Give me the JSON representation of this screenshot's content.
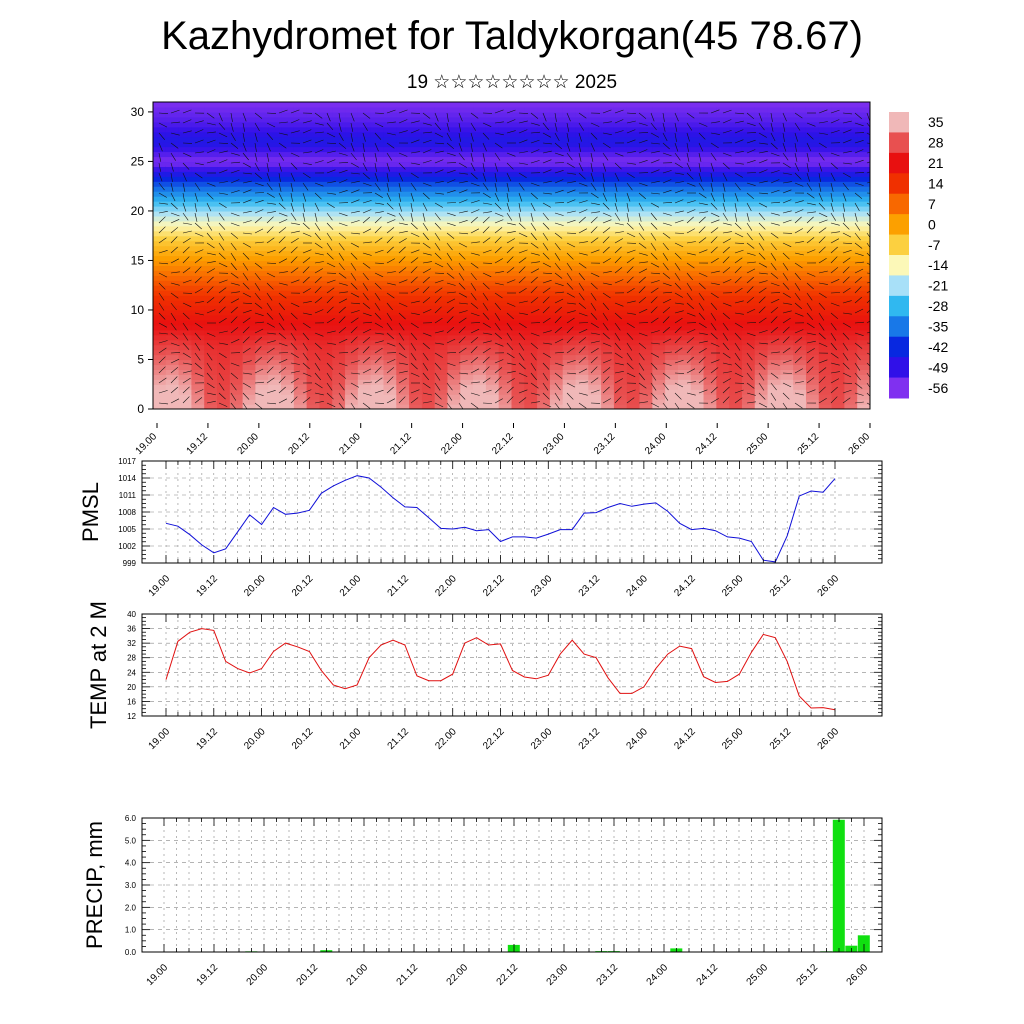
{
  "header": {
    "title": "Kazhydromet for Taldykorgan(45 78.67)",
    "subtitle": "19 ☆☆☆☆☆☆☆☆ 2025"
  },
  "time_ticks": [
    "19.00",
    "19.12",
    "20.00",
    "20.12",
    "21.00",
    "21.12",
    "22.00",
    "22.12",
    "23.00",
    "23.12",
    "24.00",
    "24.12",
    "25.00",
    "25.12",
    "26.00"
  ],
  "chart_data": [
    {
      "type": "heatmap",
      "ylim": [
        0,
        31
      ],
      "y_ticks": [
        0,
        5,
        10,
        15,
        20,
        25,
        30
      ],
      "colorbar": {
        "labels": [
          "35",
          "28",
          "21",
          "14",
          "7",
          "0",
          "-7",
          "-14",
          "-21",
          "-28",
          "-35",
          "-42",
          "-49",
          "-56"
        ],
        "colors": [
          "#f0b8b8",
          "#e85050",
          "#e81010",
          "#f03000",
          "#f86800",
          "#fca000",
          "#fcd040",
          "#fcf8b8",
          "#a8e0f8",
          "#30b8f0",
          "#1878e8",
          "#0828e0",
          "#3010e8",
          "#8030f0"
        ]
      },
      "field": "temperature (°C) vs height and time with wind barbs",
      "profile": {
        "heights": [
          0,
          3,
          6,
          9,
          12,
          15,
          17,
          19,
          21,
          23,
          25,
          27,
          29,
          31
        ],
        "temperature": [
          34,
          30,
          26,
          20,
          12,
          1,
          -6,
          -16,
          -28,
          -40,
          -56,
          -46,
          -52,
          -56
        ]
      }
    },
    {
      "type": "line",
      "ylabel": "PMSL",
      "ylim": [
        999,
        1017
      ],
      "y_ticks": [
        999,
        1002,
        1005,
        1008,
        1011,
        1014,
        1017
      ],
      "color": "#1010d8",
      "values": [
        1006,
        1005.5,
        1004,
        1002.2,
        1000.8,
        1001.5,
        1004.5,
        1007.5,
        1005.8,
        1008.8,
        1007.6,
        1007.8,
        1008.3,
        1011.3,
        1012.6,
        1013.6,
        1014.4,
        1014,
        1012.4,
        1010.5,
        1008.9,
        1008.8,
        1007,
        1005.1,
        1005,
        1005.3,
        1004.7,
        1004.9,
        1002.8,
        1003.6,
        1003.6,
        1003.4,
        1004.1,
        1004.9,
        1004.9,
        1007.8,
        1007.9,
        1008.8,
        1009.5,
        1009,
        1009.4,
        1009.6,
        1008.1,
        1006,
        1004.9,
        1005.1,
        1004.7,
        1003.6,
        1003.4,
        1002.8,
        999.5,
        999.2,
        1003.8,
        1010.8,
        1011.7,
        1011.5,
        1013.9
      ]
    },
    {
      "type": "line",
      "ylabel": "TEMP at 2 M",
      "ylim": [
        12,
        40
      ],
      "y_ticks": [
        12,
        16,
        20,
        24,
        28,
        32,
        36,
        40
      ],
      "color": "#e01010",
      "values": [
        22,
        32.5,
        35,
        36,
        35.5,
        27,
        25,
        23.8,
        25,
        29.7,
        32,
        31,
        29.7,
        24.5,
        20.5,
        19.5,
        20.5,
        28,
        31.5,
        32.8,
        31.5,
        23,
        21.7,
        21.7,
        23.5,
        32,
        33.5,
        31.5,
        31.8,
        24.5,
        22.7,
        22.2,
        23.2,
        29,
        32.8,
        29,
        28,
        22.5,
        18.2,
        18.2,
        20,
        25,
        29,
        31.2,
        30.5,
        22.8,
        21.2,
        21.5,
        23.5,
        29.5,
        34.4,
        33.5,
        27,
        17.5,
        14.2,
        14.3,
        13.7
      ]
    },
    {
      "type": "bar",
      "ylabel": "PRECIP, mm",
      "ylim": [
        0,
        6
      ],
      "y_ticks": [
        "0.0",
        "1.0",
        "2.0",
        "3.0",
        "4.0",
        "5.0",
        "6.0"
      ],
      "color": "#10e010",
      "values": [
        0,
        0,
        0,
        0,
        0,
        0,
        0,
        0.03,
        0,
        0,
        0,
        0,
        0,
        0.08,
        0,
        0,
        0,
        0,
        0,
        0,
        0,
        0,
        0,
        0,
        0,
        0,
        0,
        0,
        0.32,
        0,
        0,
        0,
        0,
        0,
        0,
        0.04,
        0.04,
        0,
        0,
        0,
        0,
        0.16,
        0,
        0,
        0,
        0,
        0,
        0,
        0,
        0,
        0,
        0,
        0,
        0.03,
        5.92,
        0.28,
        0.75
      ]
    }
  ]
}
